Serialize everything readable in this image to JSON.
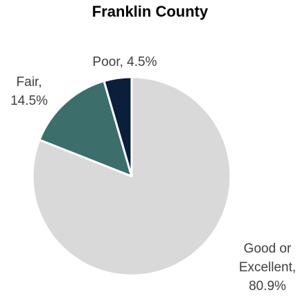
{
  "chart_data": {
    "type": "pie",
    "title": "Franklin County",
    "slices": [
      {
        "label_lines": [
          "Good or",
          "Excellent,",
          "80.9%"
        ],
        "value": 80.9,
        "color": "#d9d9d9"
      },
      {
        "label_lines": [
          "Fair,",
          "14.5%"
        ],
        "value": 14.5,
        "color": "#3c6e6c"
      },
      {
        "label_lines": [
          "Poor, 4.5%"
        ],
        "value": 4.5,
        "color": "#0b1f3a"
      }
    ],
    "start_angle": "12 o'clock",
    "direction": "clockwise",
    "slice_border_color": "#ffffff"
  }
}
